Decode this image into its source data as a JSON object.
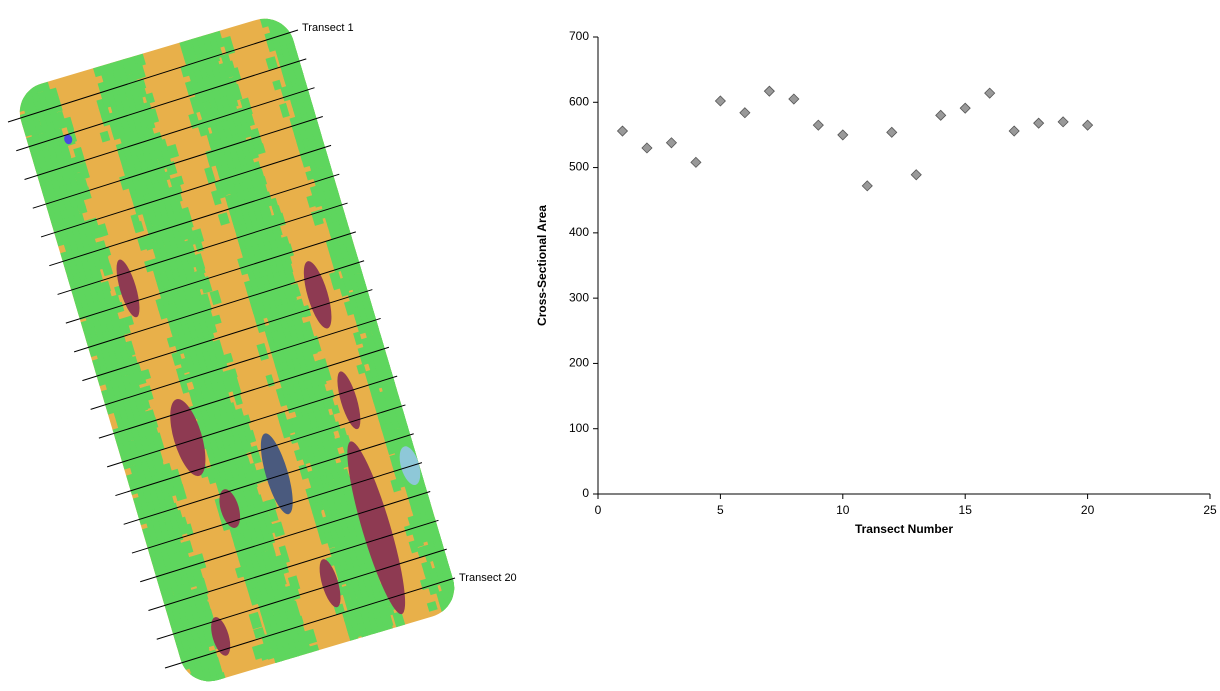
{
  "map": {
    "labels": [
      "Transect 1",
      "Transect 20"
    ]
  },
  "chart_data": {
    "type": "scatter",
    "x_label": "Transect Number",
    "y_label": "Cross-Sectional Area",
    "x": [
      1,
      2,
      3,
      4,
      5,
      6,
      7,
      8,
      9,
      10,
      11,
      12,
      13,
      14,
      15,
      16,
      17,
      18,
      19,
      20
    ],
    "values": [
      556,
      530,
      538,
      508,
      602,
      584,
      617,
      605,
      565,
      550,
      472,
      554,
      489,
      580,
      591,
      614,
      556,
      568,
      570,
      565
    ],
    "color": "#999999",
    "xlim": [
      0,
      25
    ],
    "xticks": [
      0,
      5,
      10,
      15,
      20,
      25
    ],
    "ylim": [
      0,
      700
    ],
    "yticks": [
      0,
      100,
      200,
      300,
      400,
      500,
      600,
      700
    ]
  }
}
